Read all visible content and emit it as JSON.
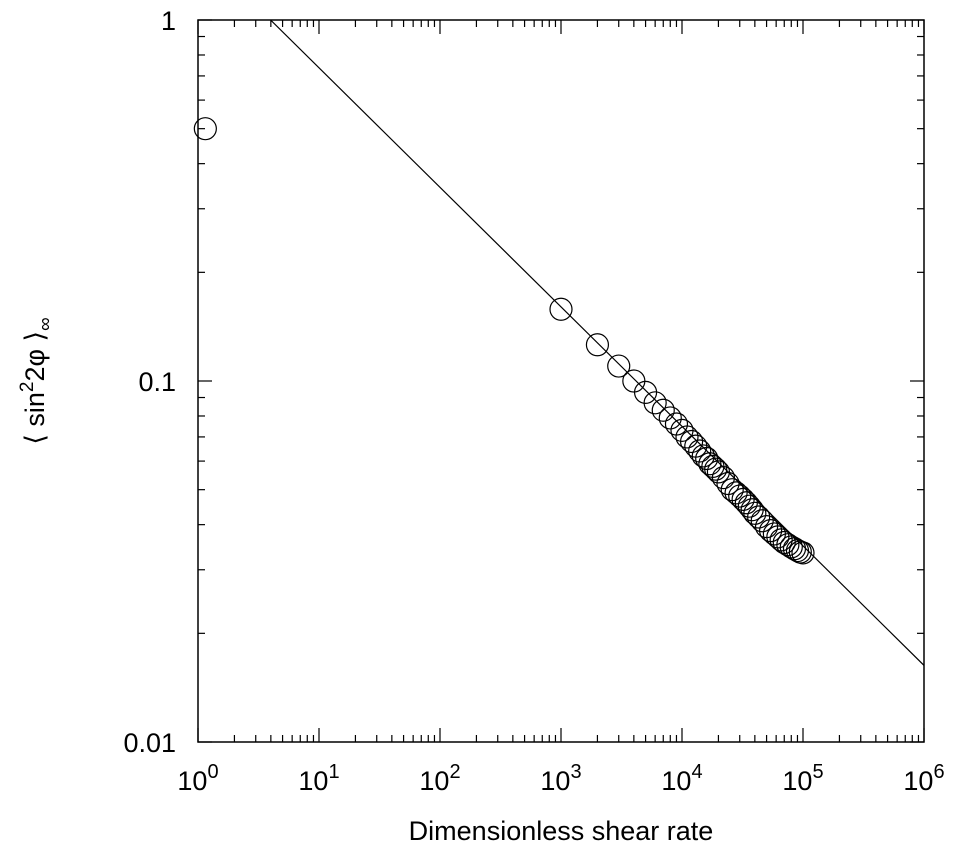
{
  "chart_data": {
    "type": "scatter",
    "title": "",
    "xlabel": "Dimensionless shear rate",
    "ylabel": "⟨ sin²2φ ⟩∞",
    "ylabel_parts": {
      "open": "⟨ sin",
      "sup": "2",
      "mid": "2φ ⟩",
      "sub": "∞"
    },
    "x_scale": "log",
    "y_scale": "log",
    "xlim": [
      1,
      1000000
    ],
    "ylim": [
      0.01,
      1
    ],
    "x_ticks": [
      {
        "value": 1,
        "base": "10",
        "exp": "0"
      },
      {
        "value": 10,
        "base": "10",
        "exp": "1"
      },
      {
        "value": 100,
        "base": "10",
        "exp": "2"
      },
      {
        "value": 1000,
        "base": "10",
        "exp": "3"
      },
      {
        "value": 10000,
        "base": "10",
        "exp": "4"
      },
      {
        "value": 100000,
        "base": "10",
        "exp": "5"
      },
      {
        "value": 1000000,
        "base": "10",
        "exp": "6"
      }
    ],
    "y_ticks": [
      {
        "value": 0.01,
        "label": "0.01"
      },
      {
        "value": 0.1,
        "label": "0.1"
      },
      {
        "value": 1,
        "label": "1"
      }
    ],
    "grid": false,
    "legend": "none",
    "series": [
      {
        "kind": "points",
        "marker": "open-circle",
        "color": "#000000",
        "x": [
          1.15,
          1000,
          2000,
          3000,
          4000,
          5000,
          6000,
          7000,
          8000,
          9000,
          10000,
          11000,
          12000,
          13000,
          14000,
          15000,
          16000,
          17000,
          18000,
          19000,
          20000,
          22000,
          24000,
          26000,
          28000,
          30000,
          32000,
          34000,
          36000,
          38000,
          40000,
          43000,
          46000,
          50000,
          54000,
          58000,
          62000,
          66000,
          70000,
          75000,
          80000,
          85000,
          90000,
          95000,
          100000
        ],
        "y": [
          0.5,
          0.158,
          0.126,
          0.11,
          0.1,
          0.093,
          0.087,
          0.083,
          0.079,
          0.076,
          0.073,
          0.07,
          0.068,
          0.066,
          0.064,
          0.062,
          0.061,
          0.059,
          0.058,
          0.057,
          0.056,
          0.054,
          0.052,
          0.05,
          0.049,
          0.048,
          0.047,
          0.046,
          0.045,
          0.044,
          0.043,
          0.042,
          0.041,
          0.0395,
          0.0385,
          0.0377,
          0.037,
          0.0363,
          0.0357,
          0.0352,
          0.0347,
          0.0343,
          0.0339,
          0.0336,
          0.0334
        ]
      },
      {
        "kind": "line",
        "color": "#000000",
        "x": [
          3.98,
          1000000
        ],
        "y": [
          1,
          0.0163
        ]
      }
    ]
  }
}
